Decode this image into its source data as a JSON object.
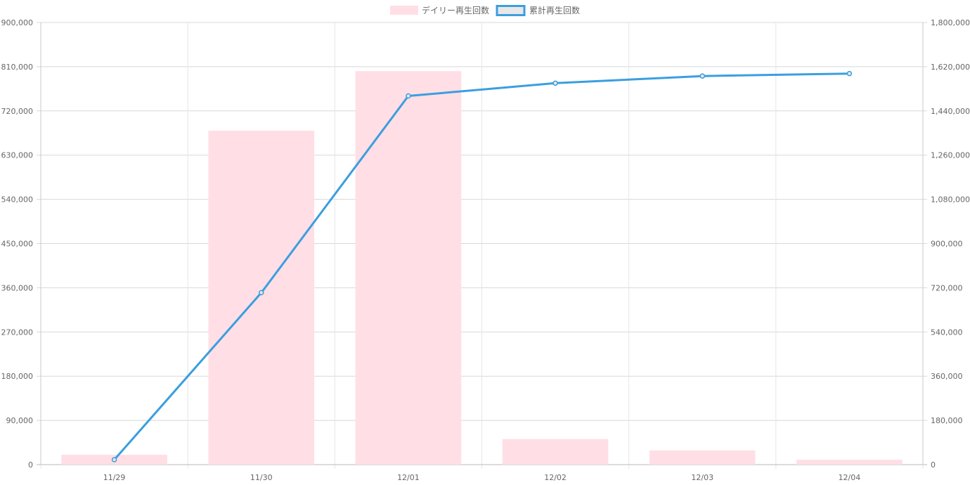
{
  "chart_data": {
    "type": "bar",
    "categories": [
      "11/29",
      "11/30",
      "12/01",
      "12/02",
      "12/03",
      "12/04"
    ],
    "series": [
      {
        "name": "デイリー再生回数",
        "type": "bar",
        "axis": "left",
        "color": "#ffdfe5",
        "values": [
          20000,
          680000,
          801000,
          52000,
          29000,
          10000
        ]
      },
      {
        "name": "累計再生回数",
        "type": "line",
        "axis": "right",
        "color": "#3b9ee0",
        "point_fill": "#e8e8e8",
        "values": [
          20000,
          700000,
          1501000,
          1553000,
          1582000,
          1592000
        ]
      }
    ],
    "y_left": {
      "range": [
        0,
        900000
      ],
      "tick_labels": [
        "0",
        "90,000",
        "180,000",
        "270,000",
        "360,000",
        "450,000",
        "540,000",
        "630,000",
        "720,000",
        "810,000",
        "900,000"
      ]
    },
    "y_right": {
      "range": [
        0,
        1800000
      ],
      "tick_labels": [
        "0",
        "180,000",
        "360,000",
        "540,000",
        "720,000",
        "900,000",
        "1,080,000",
        "1,260,000",
        "1,440,000",
        "1,620,000",
        "1,800,000"
      ]
    },
    "grid": true,
    "legend_position": "top-center",
    "xlabel": "",
    "ylabel": ""
  }
}
